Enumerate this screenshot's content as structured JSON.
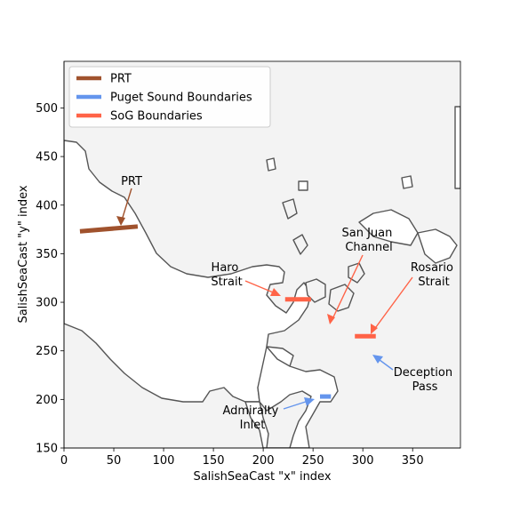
{
  "chart_data": {
    "type": "map",
    "xlabel": "SalishSeaCast \"x\" index",
    "ylabel": "SalishSeaCast \"y\" index",
    "xlim": [
      0,
      398
    ],
    "ylim": [
      150,
      548
    ],
    "xticks": [
      "0",
      "50",
      "100",
      "150",
      "200",
      "250",
      "300",
      "350"
    ],
    "xtick_values": [
      0,
      50,
      100,
      150,
      200,
      250,
      300,
      350
    ],
    "yticks": [
      "150",
      "200",
      "250",
      "300",
      "350",
      "400",
      "450",
      "500"
    ],
    "ytick_values": [
      150,
      200,
      250,
      300,
      350,
      400,
      450,
      500
    ],
    "colors": {
      "land": "#f3f3f3",
      "water": "#ffffff",
      "coast": "#555555",
      "prt": "#a0522d",
      "puget": "#6495ed",
      "sog": "#ff6347"
    },
    "legend": {
      "placement": "top-left",
      "entries": [
        {
          "label": "PRT",
          "color": "#a0522d"
        },
        {
          "label": "Puget Sound Boundaries",
          "color": "#6495ed"
        },
        {
          "label": "SoG Boundaries",
          "color": "#ff6347"
        }
      ]
    },
    "segments": [
      {
        "group": "PRT",
        "x": [
          16,
          74
        ],
        "y": [
          373,
          378
        ]
      },
      {
        "group": "SoG Boundaries",
        "x": [
          222,
          248
        ],
        "y": [
          303,
          303
        ]
      },
      {
        "group": "SoG Boundaries",
        "x": [
          292,
          313
        ],
        "y": [
          265,
          265
        ]
      },
      {
        "group": "Puget Sound Boundaries",
        "x": [
          257,
          268
        ],
        "y": [
          203,
          203
        ]
      }
    ],
    "annotations": [
      {
        "label": "PRT",
        "text_x": 68,
        "text_y": 420,
        "arrow_x": 56,
        "arrow_y": 375,
        "color": "#a0522d"
      },
      {
        "label": "Haro\nStrait",
        "text_x": 165,
        "text_y": 330,
        "arrow_x": 222,
        "arrow_y": 304,
        "color": "#ff6347"
      },
      {
        "label": "San Juan\nChannel",
        "text_x": 308,
        "text_y": 362,
        "arrow_x": 268,
        "arrow_y": 278,
        "color": "#ff6347"
      },
      {
        "label": "Rosario\nStrait",
        "text_x": 370,
        "text_y": 328,
        "arrow_x": 309,
        "arrow_y": 267,
        "color": "#ff6347"
      },
      {
        "label": "Deception\nPass",
        "text_x": 362,
        "text_y": 210,
        "arrow_x": 313,
        "arrow_y": 236,
        "color": "#6495ed"
      },
      {
        "label": "Admiralty\nInlet",
        "text_x": 190,
        "text_y": 183,
        "arrow_x": 254,
        "arrow_y": 203,
        "color": "#6495ed"
      }
    ]
  }
}
